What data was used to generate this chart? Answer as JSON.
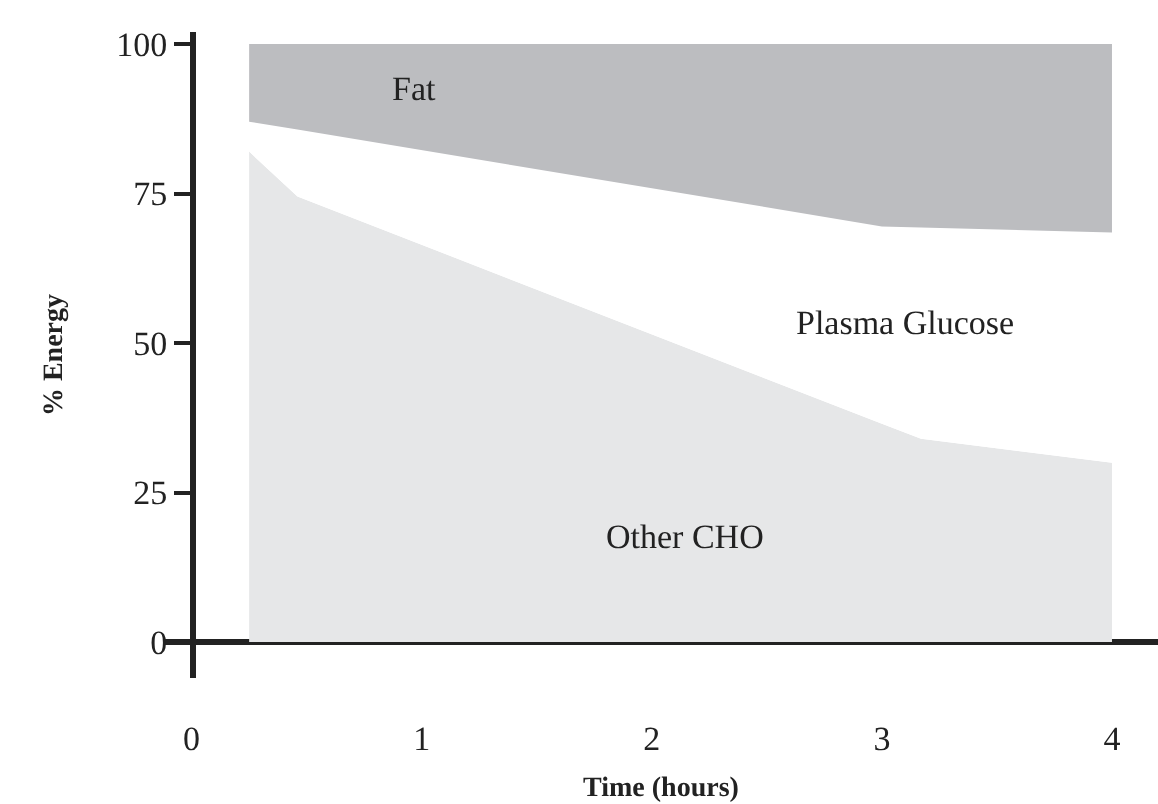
{
  "chart_data": {
    "type": "area",
    "stacked": true,
    "xlabel": "Time (hours)",
    "ylabel": "% Energy",
    "x": [
      0.25,
      0.46,
      3.0,
      3.17,
      4.0
    ],
    "series": [
      {
        "name": "Other CHO",
        "color": "#e6e7e8",
        "values": [
          82,
          74.5,
          36.5,
          34,
          30
        ]
      },
      {
        "name": "Plasma Glucose",
        "color": "#ffffff",
        "values": [
          5,
          11.2,
          33,
          35.3,
          38.5
        ]
      },
      {
        "name": "Fat",
        "color": "#bcbdc0",
        "values": [
          13,
          14.3,
          30.5,
          30.7,
          31.5
        ]
      }
    ],
    "xlim": [
      -0.12,
      4.2
    ],
    "xticks": [
      0,
      1,
      2,
      3,
      4
    ],
    "ylim": [
      -6,
      102
    ],
    "yticks": [
      0,
      25,
      50,
      75,
      100
    ],
    "legend": false
  }
}
